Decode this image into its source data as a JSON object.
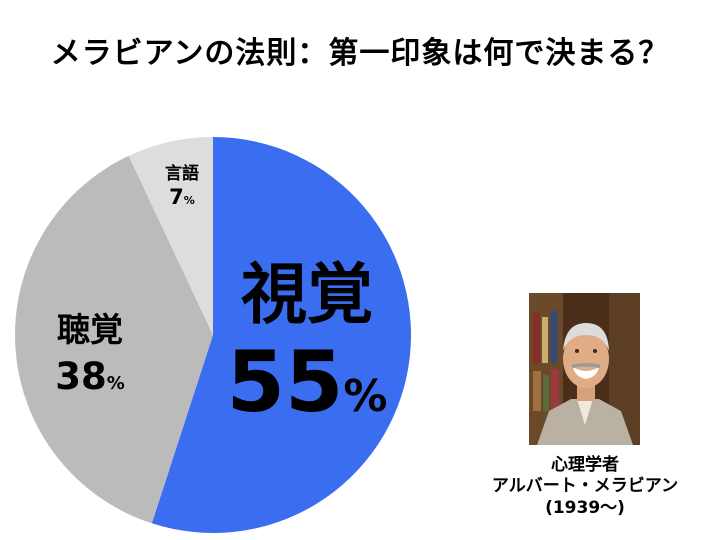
{
  "title": "メラビアンの法則：第一印象は何で決まる？",
  "chart_data": {
    "type": "pie",
    "title": "メラビアンの法則：第一印象は何で決まる？",
    "slices": [
      {
        "name": "視覚",
        "value": 55,
        "unit": "%",
        "color": "#3a6df0"
      },
      {
        "name": "聴覚",
        "value": 38,
        "unit": "%",
        "color": "#bbbbbb"
      },
      {
        "name": "言語",
        "value": 7,
        "unit": "%",
        "color": "#dddddd"
      }
    ],
    "start": "top",
    "direction": "clockwise",
    "legend": "none"
  },
  "caption": {
    "role": "心理学者",
    "name": "アルバート・メラビアン",
    "years": "(1939〜)"
  }
}
